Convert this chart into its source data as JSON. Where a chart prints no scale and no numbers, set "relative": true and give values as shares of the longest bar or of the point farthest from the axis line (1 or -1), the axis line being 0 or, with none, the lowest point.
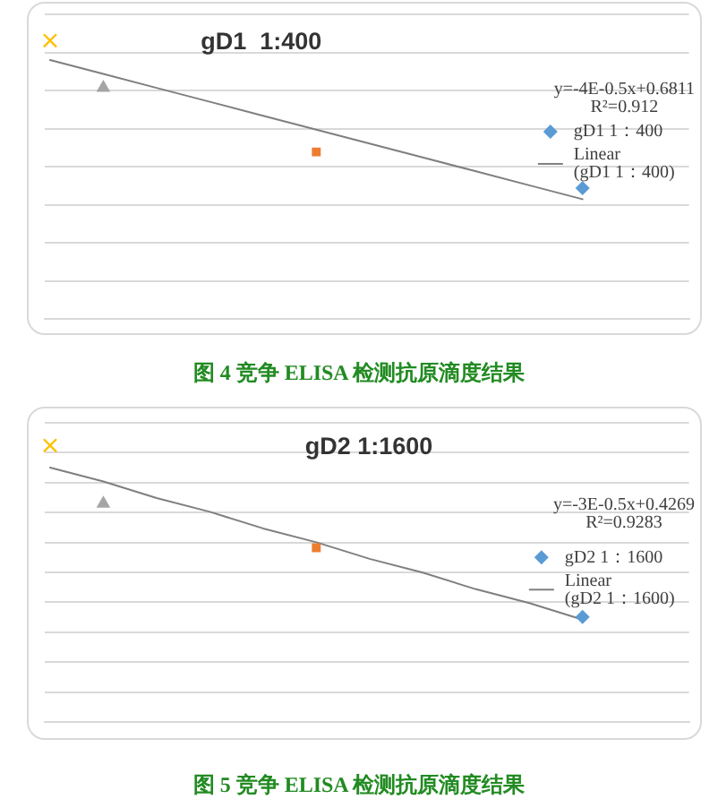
{
  "chart_data": [
    {
      "type": "line",
      "title": "gD1  1:400",
      "categories": [
        null,
        null,
        null,
        null,
        null,
        null,
        null,
        null,
        null,
        null,
        null,
        null,
        null
      ],
      "series": [
        {
          "color": "#ffc000",
          "marker": "cross",
          "values": [
            1,
            null,
            null,
            null,
            null,
            null,
            null,
            null,
            null,
            null,
            null,
            null,
            null
          ]
        },
        {
          "color": "#a5a5a5",
          "marker": "triangle",
          "values": [
            null,
            0.83,
            null,
            null,
            null,
            null,
            null,
            null,
            null,
            null,
            null,
            null,
            null
          ]
        },
        {
          "color": "#ed7d31",
          "marker": "square",
          "values": [
            null,
            null,
            null,
            null,
            null,
            0.6,
            null,
            null,
            null,
            null,
            null,
            null,
            null
          ]
        },
        {
          "name": "gD1 1：400",
          "color": "#5b9bd5",
          "marker": "diamond",
          "values": [
            null,
            null,
            null,
            null,
            null,
            null,
            null,
            null,
            null,
            null,
            0.47,
            null,
            null
          ]
        },
        {
          "name": "Linear (gD1 1：400)",
          "color": "#7f7f7f",
          "marker": "none",
          "values": [
            0.93,
            0.88,
            0.83,
            0.78,
            0.73,
            0.68,
            0.63,
            0.58,
            0.53,
            0.48,
            0.43,
            null,
            null
          ]
        }
      ],
      "relative": true,
      "grid": "y",
      "legend": "right",
      "annotations": [
        "y=-4E-0.5x+0.6811",
        "R²=0.912",
        "图 4 竞争 ELISA 检测抗原滴度结果"
      ]
    },
    {
      "type": "line",
      "title": "gD2 1:1600",
      "categories": [
        null,
        null,
        null,
        null,
        null,
        null,
        null,
        null,
        null,
        null,
        null,
        null,
        null
      ],
      "series": [
        {
          "color": "#ffc000",
          "marker": "cross",
          "values": [
            1,
            null,
            null,
            null,
            null,
            null,
            null,
            null,
            null,
            null,
            null,
            null,
            null
          ]
        },
        {
          "color": "#a5a5a5",
          "marker": "triangle",
          "values": [
            null,
            0.79,
            null,
            null,
            null,
            null,
            null,
            null,
            null,
            null,
            null,
            null,
            null
          ]
        },
        {
          "color": "#ed7d31",
          "marker": "square",
          "values": [
            null,
            null,
            null,
            null,
            null,
            0.63,
            null,
            null,
            null,
            null,
            null,
            null,
            null
          ]
        },
        {
          "name": "gD2 1：1600",
          "color": "#5b9bd5",
          "marker": "diamond",
          "values": [
            null,
            null,
            null,
            null,
            null,
            null,
            null,
            null,
            null,
            null,
            0.38,
            null,
            null
          ]
        },
        {
          "name": "Linear (gD2 1：1600)",
          "color": "#7f7f7f",
          "marker": "none",
          "values": [
            0.92,
            0.87,
            0.81,
            0.76,
            0.7,
            0.65,
            0.59,
            0.54,
            0.48,
            0.43,
            0.37,
            null,
            null
          ]
        }
      ],
      "relative": true,
      "grid": "y",
      "legend": "right",
      "annotations": [
        "y=-3E-0.5x+0.4269",
        "R²=0.9283",
        "图 5 竞争 ELISA 检测抗原滴度结果"
      ]
    }
  ]
}
